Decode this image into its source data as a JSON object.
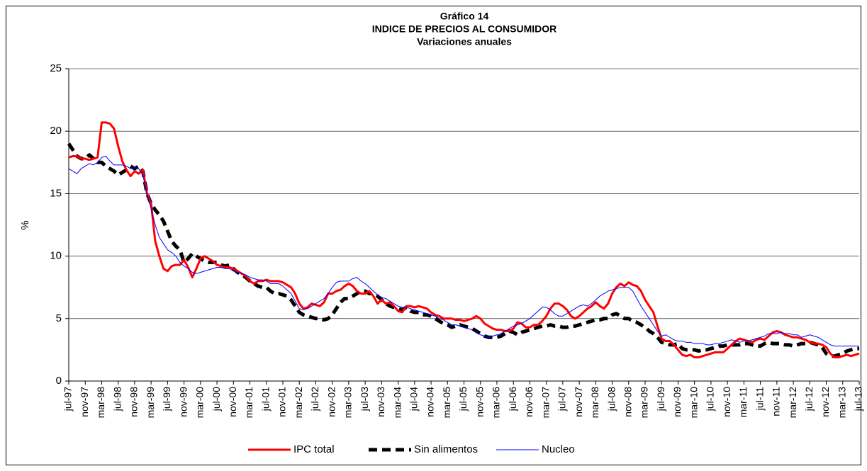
{
  "chart_data": {
    "type": "line",
    "title_lines": [
      "Gráfico 14",
      "INDICE DE PRECIOS AL CONSUMIDOR",
      "Variaciones anuales"
    ],
    "y_label": "%",
    "ylim": [
      0,
      25
    ],
    "yticks": [
      0,
      5,
      10,
      15,
      20,
      25
    ],
    "grid": true,
    "legend": "bottom",
    "categories": [
      "jul-97",
      null,
      null,
      null,
      "nov-97",
      null,
      null,
      null,
      "mar-98",
      null,
      null,
      null,
      "jul-98",
      null,
      null,
      null,
      "nov-98",
      null,
      null,
      null,
      "mar-99",
      null,
      null,
      null,
      "jul-99",
      null,
      null,
      null,
      "nov-99",
      null,
      null,
      null,
      "mar-00",
      null,
      null,
      null,
      "jul-00",
      null,
      null,
      null,
      "nov-00",
      null,
      null,
      null,
      "mar-01",
      null,
      null,
      null,
      "jul-01",
      null,
      null,
      null,
      "nov-01",
      null,
      null,
      null,
      "mar-02",
      null,
      null,
      null,
      "jul-02",
      null,
      null,
      null,
      "nov-02",
      null,
      null,
      null,
      "mar-03",
      null,
      null,
      null,
      "jul-03",
      null,
      null,
      null,
      "nov-03",
      null,
      null,
      null,
      "mar-04",
      null,
      null,
      null,
      "jul-04",
      null,
      null,
      null,
      "nov-04",
      null,
      null,
      null,
      "mar-05",
      null,
      null,
      null,
      "jul-05",
      null,
      null,
      null,
      "nov-05",
      null,
      null,
      null,
      "mar-06",
      null,
      null,
      null,
      "jul-06",
      null,
      null,
      null,
      "nov-06",
      null,
      null,
      null,
      "mar-07",
      null,
      null,
      null,
      "jul-07",
      null,
      null,
      null,
      "nov-07",
      null,
      null,
      null,
      "mar-08",
      null,
      null,
      null,
      "jul-08",
      null,
      null,
      null,
      "nov-08",
      null,
      null,
      null,
      "mar-09",
      null,
      null,
      null,
      "jul-09",
      null,
      null,
      null,
      "nov-09",
      null,
      null,
      null,
      "mar-10",
      null,
      null,
      null,
      "jul-10",
      null,
      null,
      null,
      "nov-10",
      null,
      null,
      null,
      "mar-11",
      null,
      null,
      null,
      "jul-11",
      null,
      null,
      null,
      "nov-11",
      null,
      null,
      null,
      "mar-12",
      null,
      null,
      null,
      "jul-12",
      null,
      null,
      null,
      "nov-12",
      null,
      null,
      null,
      "mar-13",
      null,
      null,
      null,
      "jul-13"
    ],
    "series": [
      {
        "name": "IPC total",
        "color": "#ff0000",
        "style": "solid",
        "width": 3,
        "values": [
          17.9,
          18.0,
          18.0,
          17.8,
          17.8,
          17.7,
          17.8,
          17.9,
          20.7,
          20.7,
          20.6,
          20.2,
          18.8,
          17.6,
          16.9,
          16.4,
          16.8,
          16.6,
          16.9,
          15.0,
          14.2,
          11.2,
          10.0,
          9.0,
          8.8,
          9.2,
          9.3,
          9.3,
          9.7,
          9.1,
          8.3,
          9.0,
          9.8,
          10.0,
          9.8,
          9.6,
          9.3,
          9.2,
          9.1,
          9.1,
          9.0,
          8.8,
          8.6,
          8.4,
          8.0,
          7.8,
          8.0,
          8.0,
          8.1,
          8.0,
          8.0,
          8.0,
          7.9,
          7.7,
          7.5,
          7.0,
          6.2,
          5.8,
          5.9,
          6.2,
          6.1,
          6.0,
          6.3,
          7.0,
          7.0,
          7.2,
          7.3,
          7.6,
          7.8,
          7.6,
          7.2,
          7.0,
          7.0,
          7.2,
          6.8,
          6.2,
          6.5,
          6.2,
          6.3,
          6.0,
          5.6,
          5.5,
          6.0,
          6.0,
          5.9,
          6.0,
          5.9,
          5.8,
          5.5,
          5.3,
          5.2,
          5.0,
          5.0,
          5.0,
          4.9,
          4.9,
          4.8,
          4.9,
          5.0,
          5.2,
          5.0,
          4.6,
          4.4,
          4.2,
          4.1,
          4.1,
          4.0,
          4.0,
          4.2,
          4.7,
          4.6,
          4.3,
          4.3,
          4.5,
          4.5,
          4.8,
          5.2,
          5.8,
          6.2,
          6.2,
          6.0,
          5.7,
          5.2,
          5.0,
          5.2,
          5.5,
          5.8,
          6.0,
          6.3,
          6.0,
          5.8,
          6.2,
          7.0,
          7.5,
          7.8,
          7.6,
          7.9,
          7.7,
          7.6,
          7.2,
          6.5,
          6.0,
          5.5,
          4.4,
          3.4,
          3.2,
          3.2,
          2.9,
          2.5,
          2.1,
          2.0,
          2.1,
          1.9,
          1.9,
          2.0,
          2.1,
          2.2,
          2.3,
          2.3,
          2.3,
          2.6,
          2.9,
          3.2,
          3.4,
          3.3,
          3.2,
          3.1,
          3.3,
          3.4,
          3.3,
          3.6,
          3.9,
          4.0,
          3.9,
          3.7,
          3.6,
          3.5,
          3.5,
          3.4,
          3.3,
          3.1,
          3.0,
          3.0,
          2.9,
          2.7,
          2.2,
          1.9,
          1.9,
          2.0,
          2.1,
          2.0,
          2.1,
          2.2
        ]
      },
      {
        "name": "Sin alimentos",
        "color": "#000000",
        "style": "dashed",
        "width": 5,
        "values": [
          19.0,
          18.5,
          18.0,
          17.8,
          17.8,
          18.1,
          17.8,
          17.5,
          17.5,
          17.2,
          17.0,
          16.8,
          16.5,
          16.7,
          16.9,
          17.2,
          17.0,
          17.2,
          16.8,
          15.0,
          14.2,
          13.7,
          13.3,
          12.8,
          12.0,
          11.2,
          10.8,
          10.5,
          9.5,
          9.8,
          10.2,
          10.0,
          9.8,
          9.6,
          9.5,
          9.5,
          9.5,
          9.3,
          9.2,
          9.3,
          9.0,
          8.7,
          8.5,
          8.3,
          8.0,
          7.8,
          7.6,
          7.5,
          7.5,
          7.2,
          7.0,
          7.0,
          6.9,
          6.8,
          6.5,
          6.0,
          5.5,
          5.3,
          5.2,
          5.1,
          5.0,
          5.0,
          4.9,
          5.0,
          5.3,
          5.8,
          6.3,
          6.6,
          6.6,
          6.8,
          7.0,
          7.2,
          7.2,
          7.0,
          7.0,
          6.8,
          6.5,
          6.2,
          6.0,
          5.9,
          5.8,
          5.7,
          5.9,
          5.6,
          5.5,
          5.5,
          5.3,
          5.3,
          5.2,
          5.0,
          4.8,
          4.6,
          4.5,
          4.3,
          4.4,
          4.5,
          4.4,
          4.3,
          4.2,
          4.0,
          3.8,
          3.6,
          3.5,
          3.5,
          3.5,
          3.6,
          3.8,
          4.0,
          3.9,
          3.7,
          3.9,
          4.0,
          4.1,
          4.2,
          4.3,
          4.4,
          4.4,
          4.5,
          4.4,
          4.4,
          4.3,
          4.3,
          4.4,
          4.4,
          4.5,
          4.6,
          4.7,
          4.8,
          4.9,
          4.9,
          5.0,
          5.0,
          5.3,
          5.4,
          5.2,
          5.0,
          5.0,
          4.8,
          4.7,
          4.5,
          4.3,
          4.0,
          3.8,
          3.5,
          3.1,
          3.0,
          2.9,
          2.9,
          3.0,
          2.6,
          2.5,
          2.5,
          2.5,
          2.4,
          2.5,
          2.5,
          2.6,
          2.7,
          2.8,
          2.8,
          2.9,
          2.9,
          2.9,
          2.9,
          3.0,
          3.0,
          2.9,
          2.8,
          2.8,
          3.0,
          3.1,
          3.0,
          3.0,
          3.0,
          2.9,
          2.9,
          2.8,
          2.9,
          3.0,
          3.0,
          3.1,
          3.0,
          2.9,
          2.7,
          2.2,
          2.0,
          2.0,
          2.1,
          2.2,
          2.4,
          2.5,
          2.6,
          2.6
        ]
      },
      {
        "name": "Nucleo",
        "color": "#0000ff",
        "style": "solid",
        "width": 1,
        "values": [
          17.0,
          16.8,
          16.6,
          17.0,
          17.2,
          17.4,
          17.3,
          17.5,
          17.9,
          18.0,
          17.6,
          17.3,
          17.3,
          17.3,
          17.2,
          17.0,
          17.1,
          17.0,
          16.5,
          15.0,
          13.8,
          12.5,
          11.5,
          11.0,
          10.5,
          10.3,
          10.0,
          9.5,
          9.2,
          9.0,
          8.7,
          8.6,
          8.7,
          8.8,
          8.9,
          9.0,
          9.1,
          9.1,
          9.0,
          9.0,
          8.8,
          8.7,
          8.6,
          8.5,
          8.3,
          8.2,
          8.1,
          8.1,
          8.0,
          7.8,
          7.8,
          7.8,
          7.6,
          7.3,
          7.0,
          6.4,
          5.8,
          5.7,
          5.8,
          6.0,
          6.2,
          6.4,
          6.6,
          7.0,
          7.5,
          7.9,
          8.0,
          8.0,
          8.0,
          8.2,
          8.3,
          8.0,
          7.8,
          7.5,
          7.2,
          6.9,
          6.7,
          6.6,
          6.4,
          6.2,
          6.0,
          5.9,
          5.9,
          5.8,
          5.7,
          5.6,
          5.5,
          5.4,
          5.3,
          5.2,
          5.0,
          4.9,
          4.7,
          4.5,
          4.5,
          4.4,
          4.3,
          4.2,
          4.1,
          3.9,
          3.7,
          3.6,
          3.5,
          3.6,
          3.7,
          3.8,
          4.0,
          4.2,
          4.4,
          4.5,
          4.6,
          4.8,
          5.0,
          5.3,
          5.6,
          5.9,
          5.9,
          5.7,
          5.4,
          5.2,
          5.2,
          5.4,
          5.6,
          5.8,
          6.0,
          6.1,
          6.0,
          6.2,
          6.5,
          6.8,
          7.0,
          7.2,
          7.3,
          7.4,
          7.5,
          7.5,
          7.5,
          7.2,
          6.6,
          6.0,
          5.5,
          5.0,
          4.5,
          4.0,
          3.6,
          3.7,
          3.5,
          3.3,
          3.2,
          3.2,
          3.1,
          3.1,
          3.0,
          3.0,
          3.0,
          2.9,
          2.9,
          3.0,
          3.0,
          3.1,
          3.2,
          3.3,
          3.2,
          3.1,
          3.2,
          3.2,
          3.3,
          3.4,
          3.5,
          3.6,
          3.8,
          3.8,
          3.8,
          3.9,
          3.8,
          3.8,
          3.7,
          3.7,
          3.5,
          3.6,
          3.7,
          3.6,
          3.5,
          3.3,
          3.1,
          2.9,
          2.8,
          2.8,
          2.8,
          2.8,
          2.8,
          2.8,
          2.8
        ]
      }
    ]
  }
}
